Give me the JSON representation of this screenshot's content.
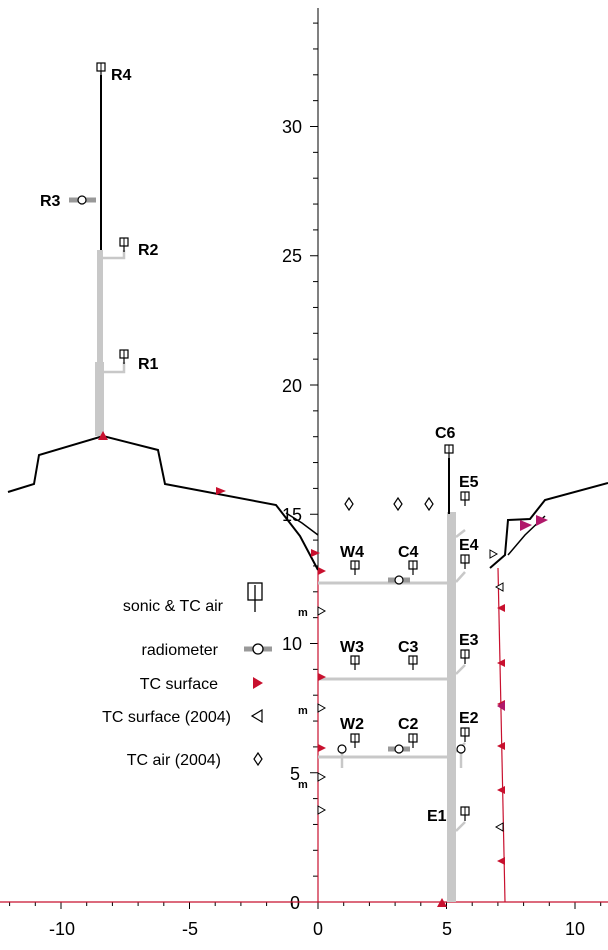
{
  "axes": {
    "x_ticks": [
      "-10",
      "-5",
      "0",
      "5",
      "10"
    ],
    "y_ticks": [
      "0",
      "5",
      "10",
      "15",
      "20",
      "25",
      "30"
    ]
  },
  "stations": {
    "R4": "R4",
    "R3": "R3",
    "R2": "R2",
    "R1": "R1",
    "C6": "C6",
    "C4": "C4",
    "C3": "C3",
    "C2": "C2",
    "W4": "W4",
    "W3": "W3",
    "W2": "W2",
    "E5": "E5",
    "E4": "E4",
    "E3": "E3",
    "E2": "E2",
    "E1": "E1"
  },
  "legend": {
    "sonic": "sonic & TC air",
    "radiometer": "radiometer",
    "tc_surface": "TC surface",
    "tc_surface_2004": "TC surface (2004)",
    "tc_air_2004": "TC air (2004)"
  },
  "m_marker": "m",
  "colors": {
    "tc_surface": "#c8102e",
    "tc_surface_alt": "#b0186a",
    "mast": "#c8c8c8",
    "wall_red": "#c8102e",
    "roof": "#000000"
  }
}
